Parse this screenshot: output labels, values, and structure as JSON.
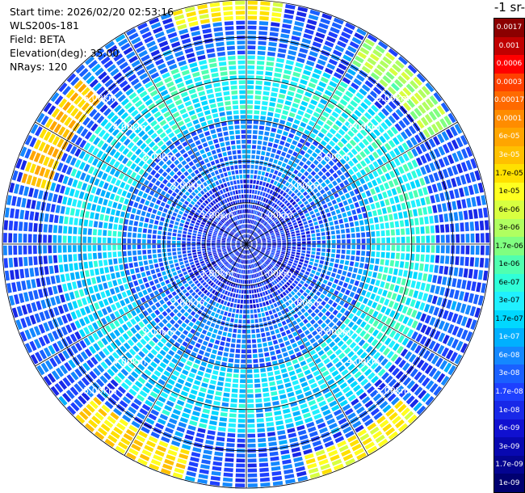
{
  "header": {
    "lines": [
      "Start time: 2026/02/20 02:53:16",
      "WLS200s-181",
      "Field: BETA",
      "Elevation(deg): 35.00",
      "NRays: 120"
    ]
  },
  "colorbar": {
    "title": "-1 sr-",
    "labels": [
      "0.0017",
      "0.001",
      "0.0006",
      "0.0003",
      "0.00017",
      "0.0001",
      "6e-05",
      "3e-05",
      "1.7e-05",
      "1e-05",
      "6e-06",
      "3e-06",
      "1.7e-06",
      "1e-06",
      "6e-07",
      "3e-07",
      "1.7e-07",
      "1e-07",
      "6e-08",
      "3e-08",
      "1.7e-08",
      "1e-08",
      "6e-09",
      "3e-09",
      "1.7e-09",
      "1e-09"
    ],
    "colors": [
      "#8b0000",
      "#c00000",
      "#ff0000",
      "#ff4000",
      "#ff6a00",
      "#ff8c00",
      "#ffa500",
      "#ffc000",
      "#ffe000",
      "#ffff20",
      "#d8ff40",
      "#b0ff60",
      "#80ff80",
      "#50ffb0",
      "#30ffd8",
      "#20f0ff",
      "#00d8ff",
      "#00b0ff",
      "#1488ff",
      "#1a60ff",
      "#1e40ff",
      "#1828e8",
      "#1010d0",
      "#0808b0",
      "#040490",
      "#000070"
    ]
  },
  "chart_data": {
    "type": "heatmap",
    "projection": "polar PPI scan",
    "field": "BETA",
    "nrays": 120,
    "elevation_deg": 35.0,
    "range_rings_km": [
      1,
      2,
      3,
      4,
      5
    ],
    "ring_labels": [
      "1.00km",
      "2.00km",
      "3.00km",
      "4.00km",
      "5.00km"
    ],
    "max_range_km": 5.9,
    "log_scale": true,
    "value_range": [
      1e-09,
      0.0017
    ],
    "data_bands": [
      {
        "range_km": [
          0,
          1.6
        ],
        "log10_beta": -7.8
      },
      {
        "range_km": [
          1.6,
          3.0
        ],
        "log10_beta": -7.3
      },
      {
        "range_km": [
          3.0,
          4.6
        ],
        "log10_beta": -6.7
      },
      {
        "range_km": [
          4.6,
          5.9
        ],
        "log10_beta": -7.5
      }
    ],
    "hotspots": [
      {
        "azimuth_deg": 300,
        "range_km": 5.3,
        "log10_beta": -4.6
      },
      {
        "azimuth_deg": 210,
        "range_km": 5.5,
        "log10_beta": -4.8
      },
      {
        "azimuth_deg": 150,
        "range_km": 5.6,
        "log10_beta": -5.0
      },
      {
        "azimuth_deg": 45,
        "range_km": 5.4,
        "log10_beta": -5.6
      },
      {
        "azimuth_deg": 355,
        "range_km": 5.8,
        "log10_beta": -5.0
      }
    ]
  }
}
